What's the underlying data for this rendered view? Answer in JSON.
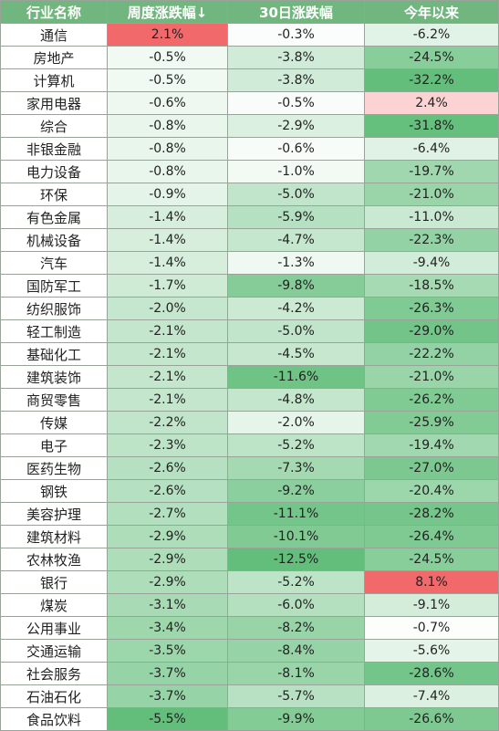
{
  "headers": [
    "行业名称",
    "周度涨跌幅↓",
    "30日涨跌幅",
    "今年以来"
  ],
  "rows": [
    [
      "通信",
      "2.1%",
      "-0.3%",
      "-6.2%"
    ],
    [
      "房地产",
      "-0.5%",
      "-3.8%",
      "-24.5%"
    ],
    [
      "计算机",
      "-0.5%",
      "-3.8%",
      "-32.2%"
    ],
    [
      "家用电器",
      "-0.6%",
      "-0.5%",
      "2.4%"
    ],
    [
      "综合",
      "-0.8%",
      "-2.9%",
      "-31.8%"
    ],
    [
      "非银金融",
      "-0.8%",
      "-0.6%",
      "-6.4%"
    ],
    [
      "电力设备",
      "-0.8%",
      "-1.0%",
      "-19.7%"
    ],
    [
      "环保",
      "-0.9%",
      "-5.0%",
      "-21.0%"
    ],
    [
      "有色金属",
      "-1.4%",
      "-5.9%",
      "-11.0%"
    ],
    [
      "机械设备",
      "-1.4%",
      "-4.7%",
      "-22.3%"
    ],
    [
      "汽车",
      "-1.4%",
      "-1.3%",
      "-9.4%"
    ],
    [
      "国防军工",
      "-1.7%",
      "-9.8%",
      "-18.5%"
    ],
    [
      "纺织服饰",
      "-2.0%",
      "-4.2%",
      "-26.3%"
    ],
    [
      "轻工制造",
      "-2.1%",
      "-5.0%",
      "-29.0%"
    ],
    [
      "基础化工",
      "-2.1%",
      "-4.5%",
      "-22.2%"
    ],
    [
      "建筑装饰",
      "-2.1%",
      "-11.6%",
      "-21.0%"
    ],
    [
      "商贸零售",
      "-2.1%",
      "-4.8%",
      "-26.2%"
    ],
    [
      "传媒",
      "-2.2%",
      "-2.0%",
      "-25.9%"
    ],
    [
      "电子",
      "-2.3%",
      "-5.2%",
      "-19.4%"
    ],
    [
      "医药生物",
      "-2.6%",
      "-7.3%",
      "-27.0%"
    ],
    [
      "钢铁",
      "-2.6%",
      "-9.2%",
      "-20.4%"
    ],
    [
      "美容护理",
      "-2.7%",
      "-11.1%",
      "-28.2%"
    ],
    [
      "建筑材料",
      "-2.9%",
      "-10.1%",
      "-26.4%"
    ],
    [
      "农林牧渔",
      "-2.9%",
      "-12.5%",
      "-24.5%"
    ],
    [
      "银行",
      "-2.9%",
      "-5.2%",
      "8.1%"
    ],
    [
      "煤炭",
      "-3.1%",
      "-6.0%",
      "-9.1%"
    ],
    [
      "公用事业",
      "-3.4%",
      "-8.2%",
      "-0.7%"
    ],
    [
      "交通运输",
      "-3.5%",
      "-8.4%",
      "-5.6%"
    ],
    [
      "社会服务",
      "-3.7%",
      "-8.1%",
      "-28.6%"
    ],
    [
      "石油石化",
      "-3.7%",
      "-5.7%",
      "-7.4%"
    ],
    [
      "食品饮料",
      "-5.5%",
      "-9.9%",
      "-26.6%"
    ]
  ],
  "colors": {
    "header_bg": "#71b67e",
    "header_text": "#ffffff",
    "positive_max": "#f2696b",
    "negative_max": "#63be7b",
    "neutral": "#ffffff",
    "border": "#9aa39a"
  }
}
